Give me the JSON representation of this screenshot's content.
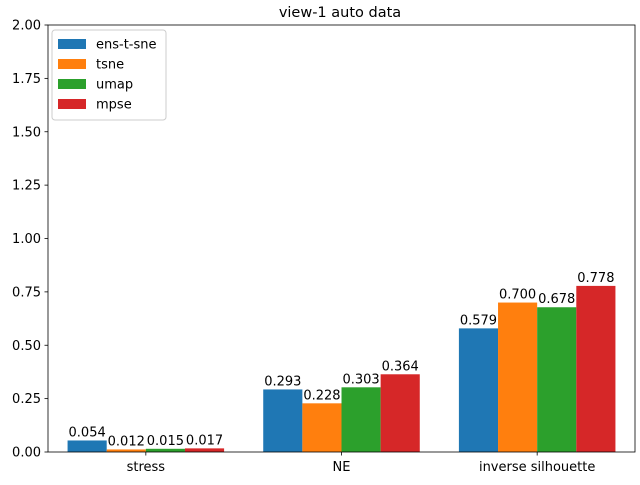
{
  "chart_data": {
    "type": "bar",
    "title": "view-1 auto data",
    "xlabel": "",
    "ylabel": "",
    "categories": [
      "stress",
      "NE",
      "inverse silhouette"
    ],
    "ylim": [
      0,
      2.0
    ],
    "yticks": [
      0.0,
      0.25,
      0.5,
      0.75,
      1.0,
      1.25,
      1.5,
      1.75,
      2.0
    ],
    "ytick_labels": [
      "0.00",
      "0.25",
      "0.50",
      "0.75",
      "1.00",
      "1.25",
      "1.50",
      "1.75",
      "2.00"
    ],
    "grid": false,
    "legend_position": "top-left",
    "series": [
      {
        "name": "ens-t-sne",
        "color": "#1f77b4",
        "values": [
          0.054,
          0.293,
          0.579
        ],
        "labels": [
          "0.054",
          "0.293",
          "0.579"
        ]
      },
      {
        "name": "tsne",
        "color": "#ff7f0e",
        "values": [
          0.012,
          0.228,
          0.7
        ],
        "labels": [
          "0.012",
          "0.228",
          "0.700"
        ]
      },
      {
        "name": "umap",
        "color": "#2ca02c",
        "values": [
          0.015,
          0.303,
          0.678
        ],
        "labels": [
          "0.015",
          "0.303",
          "0.678"
        ]
      },
      {
        "name": "mpse",
        "color": "#d62728",
        "values": [
          0.017,
          0.364,
          0.778
        ],
        "labels": [
          "0.017",
          "0.364",
          "0.778"
        ]
      }
    ]
  }
}
